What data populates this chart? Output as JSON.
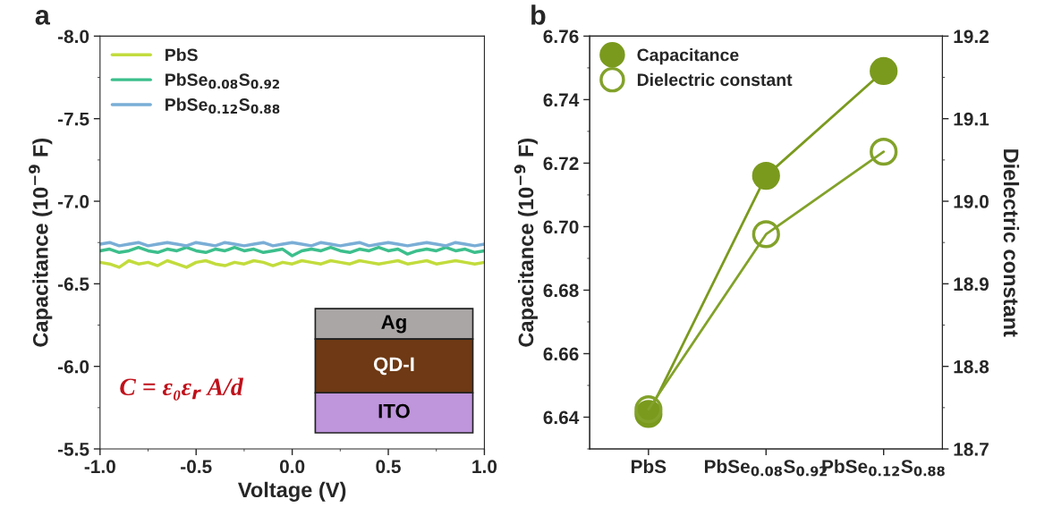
{
  "chart_data": [
    {
      "type": "line",
      "title": "a",
      "xlabel": "Voltage (V)",
      "ylabel": "Capacitance (10$^{−9}$ F)",
      "x": [
        -1.0,
        -0.95,
        -0.9,
        -0.85,
        -0.8,
        -0.75,
        -0.7,
        -0.65,
        -0.6,
        -0.55,
        -0.5,
        -0.45,
        -0.4,
        -0.35,
        -0.3,
        -0.25,
        -0.2,
        -0.15,
        -0.1,
        -0.05,
        0.0,
        0.05,
        0.1,
        0.15,
        0.2,
        0.25,
        0.3,
        0.35,
        0.4,
        0.45,
        0.5,
        0.55,
        0.6,
        0.65,
        0.7,
        0.75,
        0.8,
        0.85,
        0.9,
        0.95,
        1.0
      ],
      "series": [
        {
          "name": "PbS",
          "color": "#c2dc3c",
          "values": [
            -6.63,
            -6.62,
            -6.6,
            -6.64,
            -6.62,
            -6.63,
            -6.61,
            -6.64,
            -6.62,
            -6.6,
            -6.63,
            -6.64,
            -6.62,
            -6.61,
            -6.63,
            -6.62,
            -6.64,
            -6.63,
            -6.61,
            -6.63,
            -6.62,
            -6.64,
            -6.63,
            -6.62,
            -6.64,
            -6.63,
            -6.62,
            -6.64,
            -6.63,
            -6.62,
            -6.63,
            -6.64,
            -6.62,
            -6.63,
            -6.64,
            -6.62,
            -6.63,
            -6.64,
            -6.63,
            -6.62,
            -6.63
          ]
        },
        {
          "name": "PbSe$_{0.08}$S$_{0.92}$",
          "color": "#3cbf8c",
          "values": [
            -6.7,
            -6.71,
            -6.69,
            -6.7,
            -6.72,
            -6.7,
            -6.69,
            -6.71,
            -6.7,
            -6.72,
            -6.7,
            -6.69,
            -6.71,
            -6.7,
            -6.72,
            -6.7,
            -6.71,
            -6.69,
            -6.7,
            -6.71,
            -6.67,
            -6.7,
            -6.71,
            -6.7,
            -6.72,
            -6.7,
            -6.69,
            -6.71,
            -6.7,
            -6.72,
            -6.7,
            -6.71,
            -6.68,
            -6.7,
            -6.71,
            -6.7,
            -6.72,
            -6.7,
            -6.71,
            -6.69,
            -6.7
          ]
        },
        {
          "name": "PbSe$_{0.12}$S$_{0.88}$",
          "color": "#7aaed6",
          "values": [
            -6.74,
            -6.75,
            -6.73,
            -6.74,
            -6.75,
            -6.73,
            -6.74,
            -6.75,
            -6.74,
            -6.73,
            -6.75,
            -6.74,
            -6.73,
            -6.75,
            -6.74,
            -6.73,
            -6.74,
            -6.75,
            -6.73,
            -6.74,
            -6.75,
            -6.74,
            -6.73,
            -6.75,
            -6.74,
            -6.73,
            -6.74,
            -6.75,
            -6.73,
            -6.74,
            -6.75,
            -6.74,
            -6.73,
            -6.74,
            -6.75,
            -6.74,
            -6.73,
            -6.75,
            -6.74,
            -6.73,
            -6.74
          ]
        }
      ],
      "xlim": [
        -1.0,
        1.0
      ],
      "xticks": [
        {
          "value": -1.0,
          "label": "-1.0"
        },
        {
          "value": -0.5,
          "label": "-0.5"
        },
        {
          "value": 0.0,
          "label": "0.0"
        },
        {
          "value": 0.5,
          "label": "0.5"
        },
        {
          "value": 1.0,
          "label": "1.0"
        }
      ],
      "ylim": [
        -5.5,
        -8.0
      ],
      "yticks": [
        {
          "value": -5.5,
          "label": "-5.5"
        },
        {
          "value": -6.0,
          "label": "-6.0"
        },
        {
          "value": -6.5,
          "label": "-6.5"
        },
        {
          "value": -7.0,
          "label": "-7.0"
        },
        {
          "value": -7.5,
          "label": "-7.5"
        },
        {
          "value": -8.0,
          "label": "-8.0"
        }
      ],
      "legend": "top left",
      "line_style": "solid",
      "annotations": [
        "C = ε₀ε$_{r}$ A/d",
        "Ag",
        "QD-I",
        "ITO"
      ]
    },
    {
      "type": "line",
      "title": "b",
      "ylabel": "Capacitance (10$^{−9}$ F)",
      "y2label": "Dielectric constant",
      "categories": [
        "PbS",
        "PbSe$_{0.08}$S$_{0.92}$",
        "PbSe$_{0.12}$S$_{0.88}$"
      ],
      "series": [
        {
          "name": "Capacitance",
          "color": "#7a9a1e",
          "values": [
            6.641,
            6.716,
            6.749
          ]
        },
        {
          "name": "Dielectric constant",
          "color": "#82a22a",
          "axis": "y2",
          "values": [
            18.748,
            18.96,
            19.06
          ]
        }
      ],
      "ylim": [
        6.63,
        6.76
      ],
      "yticks": [
        {
          "value": 6.64,
          "label": "6.64"
        },
        {
          "value": 6.66,
          "label": "6.66"
        },
        {
          "value": 6.68,
          "label": "6.68"
        },
        {
          "value": 6.7,
          "label": "6.70"
        },
        {
          "value": 6.72,
          "label": "6.72"
        },
        {
          "value": 6.74,
          "label": "6.74"
        },
        {
          "value": 6.76,
          "label": "6.76"
        }
      ],
      "y2lim": [
        18.7,
        19.2
      ],
      "y2ticks": [
        18.7,
        18.8,
        18.9,
        {
          "value": 19.0,
          "label": "19.0"
        },
        19.1,
        19.2
      ],
      "legend": "top left",
      "marker": "circle",
      "line_style": "solid"
    }
  ]
}
